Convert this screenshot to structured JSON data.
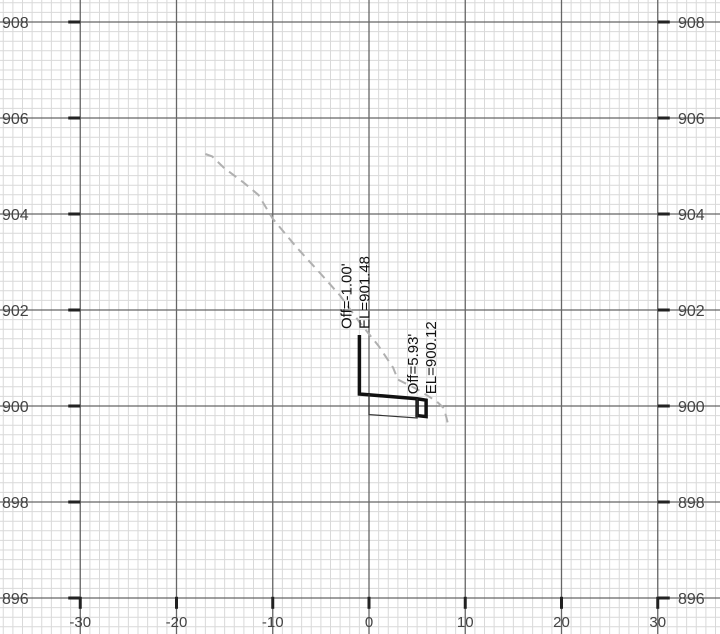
{
  "colors": {
    "background": "#ffffff",
    "minor_grid": "#d9d9d9",
    "major_grid": "#666666",
    "tick": "#222222",
    "label": "#444444",
    "ground_line": "#b0b0b0",
    "design_line": "#111111",
    "thin_line": "#333333"
  },
  "chart_data": {
    "type": "line",
    "xlim": [
      -30,
      30
    ],
    "ylim": [
      895.5,
      908.5
    ],
    "x_ticks": [
      -30,
      -20,
      -10,
      0,
      10,
      20,
      30
    ],
    "y_ticks": [
      896,
      898,
      900,
      902,
      904,
      906,
      908
    ],
    "x_tick_labels": [
      "-30",
      "-20",
      "-10",
      "0",
      "10",
      "20",
      "30"
    ],
    "y_tick_labels": [
      "896",
      "898",
      "900",
      "902",
      "904",
      "906",
      "908"
    ],
    "y_tick_labels_right": [
      "896",
      "898",
      "900",
      "902",
      "904",
      "906",
      "908"
    ],
    "minor_grid": {
      "x_step": 1,
      "y_step": 0.2
    },
    "major_grid": {
      "x_step": 10,
      "y_step": 2
    },
    "grid": true,
    "series": [
      {
        "style": "dashed",
        "points": [
          [
            -17,
            905.25
          ],
          [
            -16.3,
            905.2
          ],
          [
            -15,
            904.95
          ],
          [
            -13,
            904.65
          ],
          [
            -11.5,
            904.4
          ],
          [
            -10,
            903.9
          ],
          [
            -7.5,
            903.3
          ],
          [
            -5,
            902.75
          ],
          [
            -3,
            902.3
          ],
          [
            -1,
            901.75
          ],
          [
            1,
            901.25
          ],
          [
            2.5,
            900.8
          ],
          [
            3,
            900.55
          ],
          [
            5,
            900.35
          ],
          [
            7,
            900.1
          ],
          [
            7.8,
            899.95
          ],
          [
            8.3,
            899.55
          ]
        ]
      },
      {
        "style": "bold",
        "points": [
          [
            -1,
            901.48
          ],
          [
            -1,
            900.25
          ],
          [
            5,
            900.15
          ],
          [
            5.93,
            900.12
          ],
          [
            5.93,
            899.78
          ],
          [
            5,
            899.8
          ],
          [
            5,
            900.12
          ]
        ]
      },
      {
        "style": "thin",
        "points": [
          [
            0,
            900.25
          ],
          [
            0,
            899.82
          ],
          [
            5,
            899.75
          ],
          [
            5,
            900.15
          ]
        ]
      }
    ],
    "annotations": [
      {
        "x": -1,
        "y": 901.48,
        "line1": "Off=-1.00'",
        "line2": "EL=901.48"
      },
      {
        "x": 5.93,
        "y": 900.12,
        "line1": "Off=5.93'",
        "line2": "EL=900.12"
      }
    ]
  }
}
